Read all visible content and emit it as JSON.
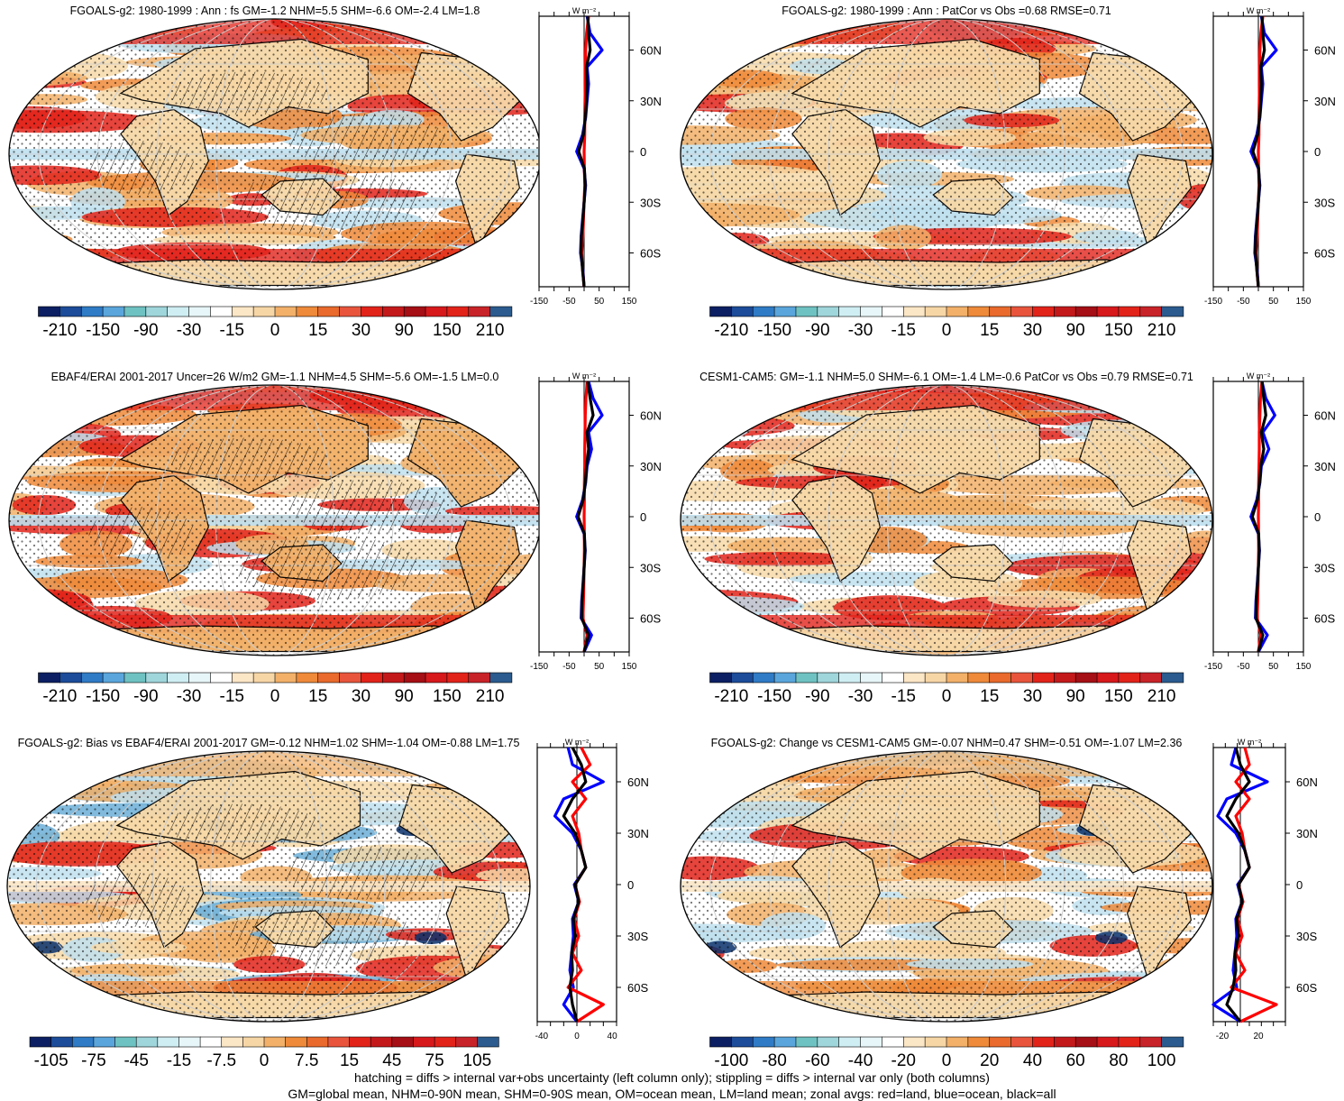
{
  "colors": {
    "land": "#f7d9a8",
    "orange_light": "#f2b069",
    "orange": "#ee8a3a",
    "red_light": "#ef5a3c",
    "red": "#e2231a",
    "red_dark": "#a50f15",
    "blue_light": "#bfe0ef",
    "blue": "#6baed6",
    "blue_dark": "#08306b",
    "line_land": "#ff0000",
    "line_ocean": "#0000ff",
    "line_all": "#000000",
    "grid": "#cccccc"
  },
  "color_scales": [
    [
      "#0c1f63",
      "#1c4c9a",
      "#2f7bc6",
      "#5aa6dc",
      "#6fc2c2",
      "#9fd6dc",
      "#cfeef3",
      "#e7f6f8",
      "#ffffff",
      "#fbe6c5",
      "#f7d6a6",
      "#f2b069",
      "#ee8a3a",
      "#e96a2c",
      "#e8553c",
      "#e2231a",
      "#c4191b",
      "#a50f15",
      "#d7191c",
      "#e2231a",
      "#c82328",
      "#2b5b8f"
    ],
    [
      "#0c1f63",
      "#1c4c9a",
      "#2f7bc6",
      "#5aa6dc",
      "#6fc2c2",
      "#9fd6dc",
      "#cfeef3",
      "#e7f6f8",
      "#ffffff",
      "#fbe6c5",
      "#f7d6a6",
      "#f2b069",
      "#ee8a3a",
      "#e96a2c",
      "#e8553c",
      "#e2231a",
      "#c4191b",
      "#a50f15",
      "#d7191c",
      "#e2231a",
      "#c82328",
      "#2b5b8f"
    ]
  ],
  "colorbar_labels": {
    "a": [
      "-210",
      "-150",
      "-90",
      "-30",
      "-15",
      "0",
      "15",
      "30",
      "90",
      "150",
      "210"
    ],
    "bias": [
      "-105",
      "-75",
      "-45",
      "-15",
      "-7.5",
      "0",
      "7.5",
      "15",
      "45",
      "75",
      "105"
    ],
    "change": [
      "-100",
      "-80",
      "-60",
      "-40",
      "-20",
      "0",
      "20",
      "40",
      "60",
      "80",
      "100"
    ]
  },
  "lat_labels": [
    "60N",
    "30N",
    "0",
    "30S",
    "60S"
  ],
  "unit_label": "W m⁻²",
  "chart_data": [
    {
      "type": "heatmap",
      "title": "FGOALS-g2: 1980-1999 : Ann : fs GM=-1.2 NHM=5.5 SHM=-6.6 OM=-2.4 LM=1.8",
      "colorbar": "a",
      "hatch": true,
      "zonal": {
        "xticks": [
          "-150",
          "-50",
          "50",
          "150"
        ],
        "xlim": [
          -150,
          150
        ],
        "lat": [
          80,
          70,
          60,
          50,
          40,
          30,
          20,
          10,
          0,
          -10,
          -20,
          -30,
          -40,
          -50,
          -60,
          -70,
          -80
        ],
        "land": [
          15,
          8,
          5,
          4,
          4,
          3,
          2,
          2,
          0,
          1,
          2,
          0,
          -2,
          -4,
          -8,
          -5,
          0
        ],
        "ocean": [
          10,
          20,
          60,
          10,
          15,
          10,
          5,
          -5,
          -25,
          0,
          5,
          0,
          -5,
          -10,
          -12,
          -4,
          0
        ],
        "all": [
          12,
          15,
          20,
          8,
          10,
          8,
          4,
          -2,
          -18,
          1,
          4,
          0,
          -4,
          -9,
          -10,
          -5,
          0
        ]
      }
    },
    {
      "type": "heatmap",
      "title": "FGOALS-g2: 1980-1999 : Ann : PatCor vs Obs =0.68 RMSE=0.71",
      "colorbar": "a",
      "hatch": false,
      "zonal": {
        "xticks": [
          "-150",
          "-50",
          "50",
          "150"
        ],
        "xlim": [
          -150,
          150
        ],
        "lat": [
          80,
          70,
          60,
          50,
          40,
          30,
          20,
          10,
          0,
          -10,
          -20,
          -30,
          -40,
          -50,
          -60,
          -70,
          -80
        ],
        "land": [
          15,
          8,
          5,
          4,
          4,
          3,
          2,
          2,
          0,
          1,
          2,
          0,
          -2,
          -4,
          -8,
          -5,
          0
        ],
        "ocean": [
          10,
          20,
          60,
          10,
          15,
          10,
          5,
          -5,
          -25,
          0,
          5,
          0,
          -5,
          -10,
          -12,
          -4,
          0
        ],
        "all": [
          12,
          15,
          20,
          8,
          10,
          8,
          4,
          -2,
          -18,
          1,
          4,
          0,
          -4,
          -9,
          -10,
          -5,
          0
        ]
      }
    },
    {
      "type": "heatmap",
      "title": "EBAF4/ERAI 2001-2017 Uncer=26 W/m2 GM=-1.1 NHM=4.5 SHM=-5.6 OM=-1.5 LM=0.0",
      "colorbar": "a",
      "hatch": true,
      "zonal": {
        "xticks": [
          "-150",
          "-50",
          "50",
          "150"
        ],
        "xlim": [
          -150,
          150
        ],
        "lat": [
          80,
          70,
          60,
          50,
          40,
          30,
          20,
          10,
          0,
          -10,
          -20,
          -30,
          -40,
          -50,
          -60,
          -70,
          -80
        ],
        "land": [
          10,
          6,
          4,
          3,
          2,
          2,
          1,
          1,
          0,
          1,
          1,
          0,
          -1,
          -2,
          -4,
          10,
          0
        ],
        "ocean": [
          15,
          30,
          60,
          15,
          25,
          10,
          5,
          -5,
          -25,
          0,
          4,
          0,
          -4,
          -8,
          -10,
          25,
          0
        ],
        "all": [
          12,
          20,
          30,
          10,
          15,
          8,
          4,
          -3,
          -20,
          1,
          3,
          0,
          -3,
          -7,
          -8,
          15,
          0
        ]
      }
    },
    {
      "type": "heatmap",
      "title": "CESM1-CAM5: GM=-1.1 NHM=5.0 SHM=-6.1 OM=-1.4 LM=-0.6 PatCor vs Obs =0.79 RMSE=0.71",
      "colorbar": "a",
      "hatch": false,
      "zonal": {
        "xticks": [
          "-150",
          "-50",
          "50",
          "150"
        ],
        "xlim": [
          -150,
          150
        ],
        "lat": [
          80,
          70,
          60,
          50,
          40,
          30,
          20,
          10,
          0,
          -10,
          -20,
          -30,
          -40,
          -50,
          -60,
          -70,
          -80
        ],
        "land": [
          12,
          7,
          5,
          3,
          3,
          2,
          1,
          1,
          0,
          1,
          1,
          0,
          -1,
          -2,
          -4,
          8,
          0
        ],
        "ocean": [
          12,
          25,
          55,
          15,
          35,
          10,
          5,
          -5,
          -25,
          0,
          4,
          0,
          -4,
          -8,
          -10,
          30,
          0
        ],
        "all": [
          12,
          18,
          25,
          10,
          18,
          8,
          4,
          -3,
          -20,
          1,
          3,
          0,
          -3,
          -7,
          -8,
          15,
          0
        ]
      }
    },
    {
      "type": "heatmap",
      "title": "FGOALS-g2: Bias vs EBAF4/ERAI 2001-2017 GM=-0.12 NHM=1.02 SHM=-1.04 OM=-0.88 LM=1.75",
      "colorbar": "bias",
      "hatch": true,
      "zonal": {
        "xticks": [
          "-40",
          "0",
          "40"
        ],
        "xlim": [
          -45,
          45
        ],
        "lat": [
          80,
          70,
          60,
          50,
          40,
          30,
          20,
          10,
          0,
          -10,
          -20,
          -30,
          -40,
          -50,
          -60,
          -70,
          -80
        ],
        "land": [
          5,
          15,
          -5,
          10,
          -5,
          2,
          5,
          10,
          -2,
          3,
          -3,
          2,
          -5,
          5,
          -10,
          30,
          0
        ],
        "ocean": [
          -10,
          -5,
          30,
          -15,
          -25,
          -5,
          5,
          10,
          -3,
          2,
          -5,
          -4,
          -6,
          -8,
          -4,
          -15,
          0
        ],
        "all": [
          -5,
          5,
          10,
          -5,
          -15,
          -2,
          5,
          10,
          -2,
          2,
          -4,
          -2,
          -6,
          -5,
          -8,
          -5,
          0
        ]
      }
    },
    {
      "type": "heatmap",
      "title": "FGOALS-g2: Change vs CESM1-CAM5 GM=-0.07 NHM=0.47 SHM=-0.51 OM=-1.07 LM=2.36",
      "colorbar": "change",
      "hatch": false,
      "zonal": {
        "xticks": [
          "-20",
          "20"
        ],
        "xlim": [
          -30,
          50
        ],
        "lat": [
          80,
          70,
          60,
          50,
          40,
          30,
          20,
          10,
          0,
          -10,
          -20,
          -30,
          -40,
          -50,
          -60,
          -70,
          -80
        ],
        "land": [
          5,
          10,
          -5,
          10,
          -5,
          2,
          5,
          10,
          -2,
          3,
          -3,
          2,
          -5,
          5,
          -10,
          40,
          0
        ],
        "ocean": [
          -5,
          -10,
          30,
          -15,
          -25,
          -5,
          5,
          10,
          -3,
          2,
          -5,
          -4,
          -6,
          -8,
          -4,
          -30,
          0
        ],
        "all": [
          -5,
          0,
          10,
          -5,
          -15,
          -2,
          5,
          10,
          -2,
          2,
          -4,
          -2,
          -6,
          -5,
          -8,
          -15,
          0
        ]
      }
    }
  ],
  "footer": {
    "line1": "hatching = diffs > internal var+obs uncertainty (left column only); stippling = diffs > internal var only (both columns)",
    "line2": "GM=global mean, NHM=0-90N mean, SHM=0-90S mean, OM=ocean mean, LM=land mean; zonal avgs: red=land, blue=ocean, black=all"
  }
}
